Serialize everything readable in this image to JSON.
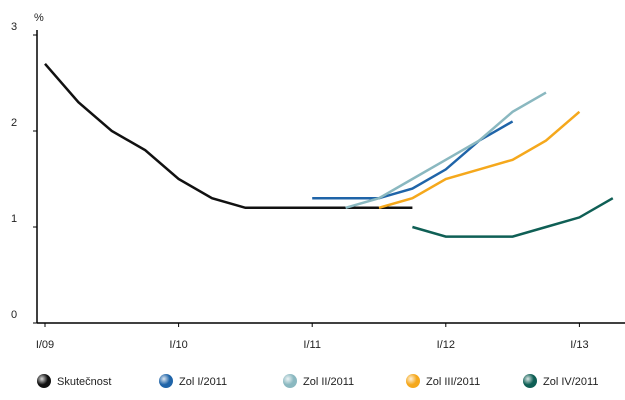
{
  "chart_data": {
    "type": "line",
    "y_unit": "%",
    "categories": [
      "I/09",
      null,
      null,
      null,
      "I/10",
      null,
      null,
      null,
      "I/11",
      null,
      null,
      null,
      "I/12",
      null,
      null,
      null,
      "I/13",
      null
    ],
    "ylim": [
      0,
      3
    ],
    "yticks": [
      0,
      1,
      2,
      3
    ],
    "legend": "bottom",
    "series": [
      {
        "name": "Skutečnost",
        "color": "#111111",
        "values": [
          2.7,
          2.3,
          2.0,
          1.8,
          1.5,
          1.3,
          1.2,
          1.2,
          1.2,
          1.2,
          1.2,
          1.2,
          null,
          null,
          null,
          null,
          null,
          null
        ]
      },
      {
        "name": "Zol I/2011",
        "color": "#1f64a8",
        "values": [
          null,
          null,
          null,
          null,
          null,
          null,
          null,
          null,
          1.3,
          1.3,
          1.3,
          1.4,
          1.6,
          1.9,
          2.1,
          null,
          null,
          null
        ]
      },
      {
        "name": "Zol II/2011",
        "color": "#8ab8c0",
        "values": [
          null,
          null,
          null,
          null,
          null,
          null,
          null,
          null,
          null,
          1.2,
          1.3,
          1.5,
          1.7,
          1.9,
          2.2,
          2.4,
          null,
          null
        ]
      },
      {
        "name": "Zol III/2011",
        "color": "#f5a81c",
        "values": [
          null,
          null,
          null,
          null,
          null,
          null,
          null,
          null,
          null,
          null,
          1.2,
          1.3,
          1.5,
          1.6,
          1.7,
          1.9,
          2.2,
          null
        ]
      },
      {
        "name": "Zol IV/2011",
        "color": "#0f5f55",
        "values": [
          null,
          null,
          null,
          null,
          null,
          null,
          null,
          null,
          null,
          null,
          null,
          1.0,
          0.9,
          0.9,
          0.9,
          1.0,
          1.1,
          1.3
        ]
      }
    ]
  }
}
